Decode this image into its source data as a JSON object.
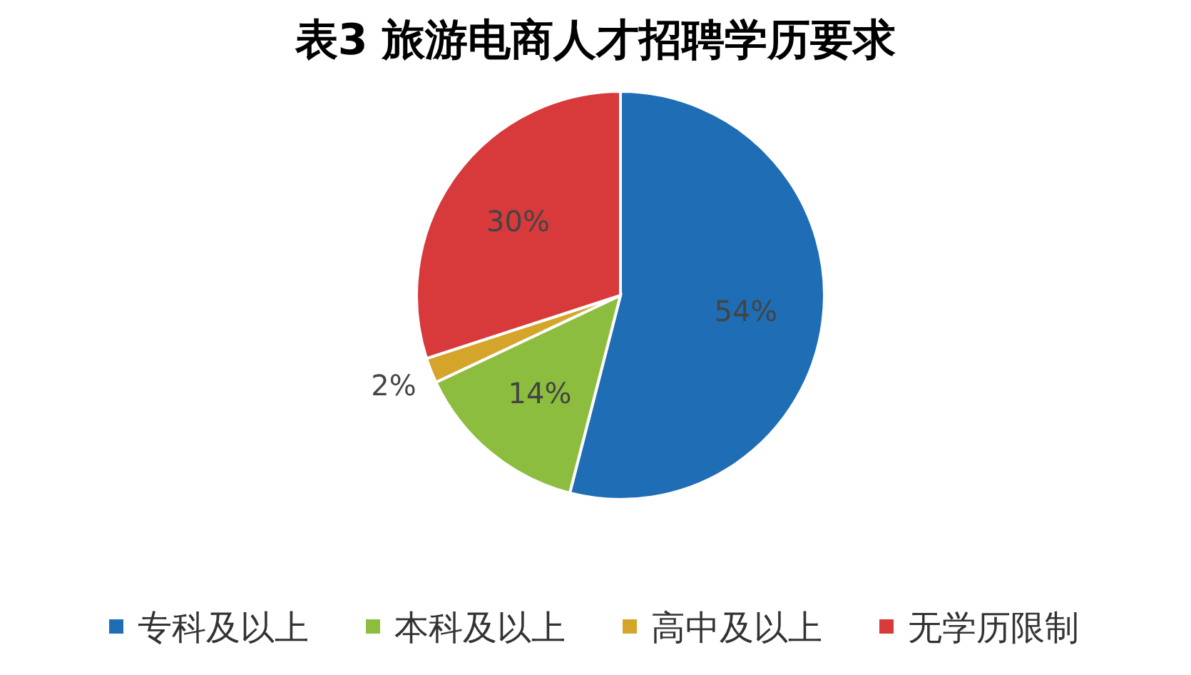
{
  "chart_data": {
    "type": "pie",
    "title": "表3  旅游电商人才招聘学历要求",
    "categories": [
      "专科及以上",
      "本科及以上",
      "高中及以上",
      "无学历限制"
    ],
    "values": [
      54,
      14,
      2,
      30
    ],
    "colors": [
      "#1f6db4",
      "#8dbd3e",
      "#d4a52a",
      "#d83a3c"
    ],
    "value_labels": [
      "54%",
      "14%",
      "2%",
      "30%"
    ],
    "legend": "bottom"
  }
}
